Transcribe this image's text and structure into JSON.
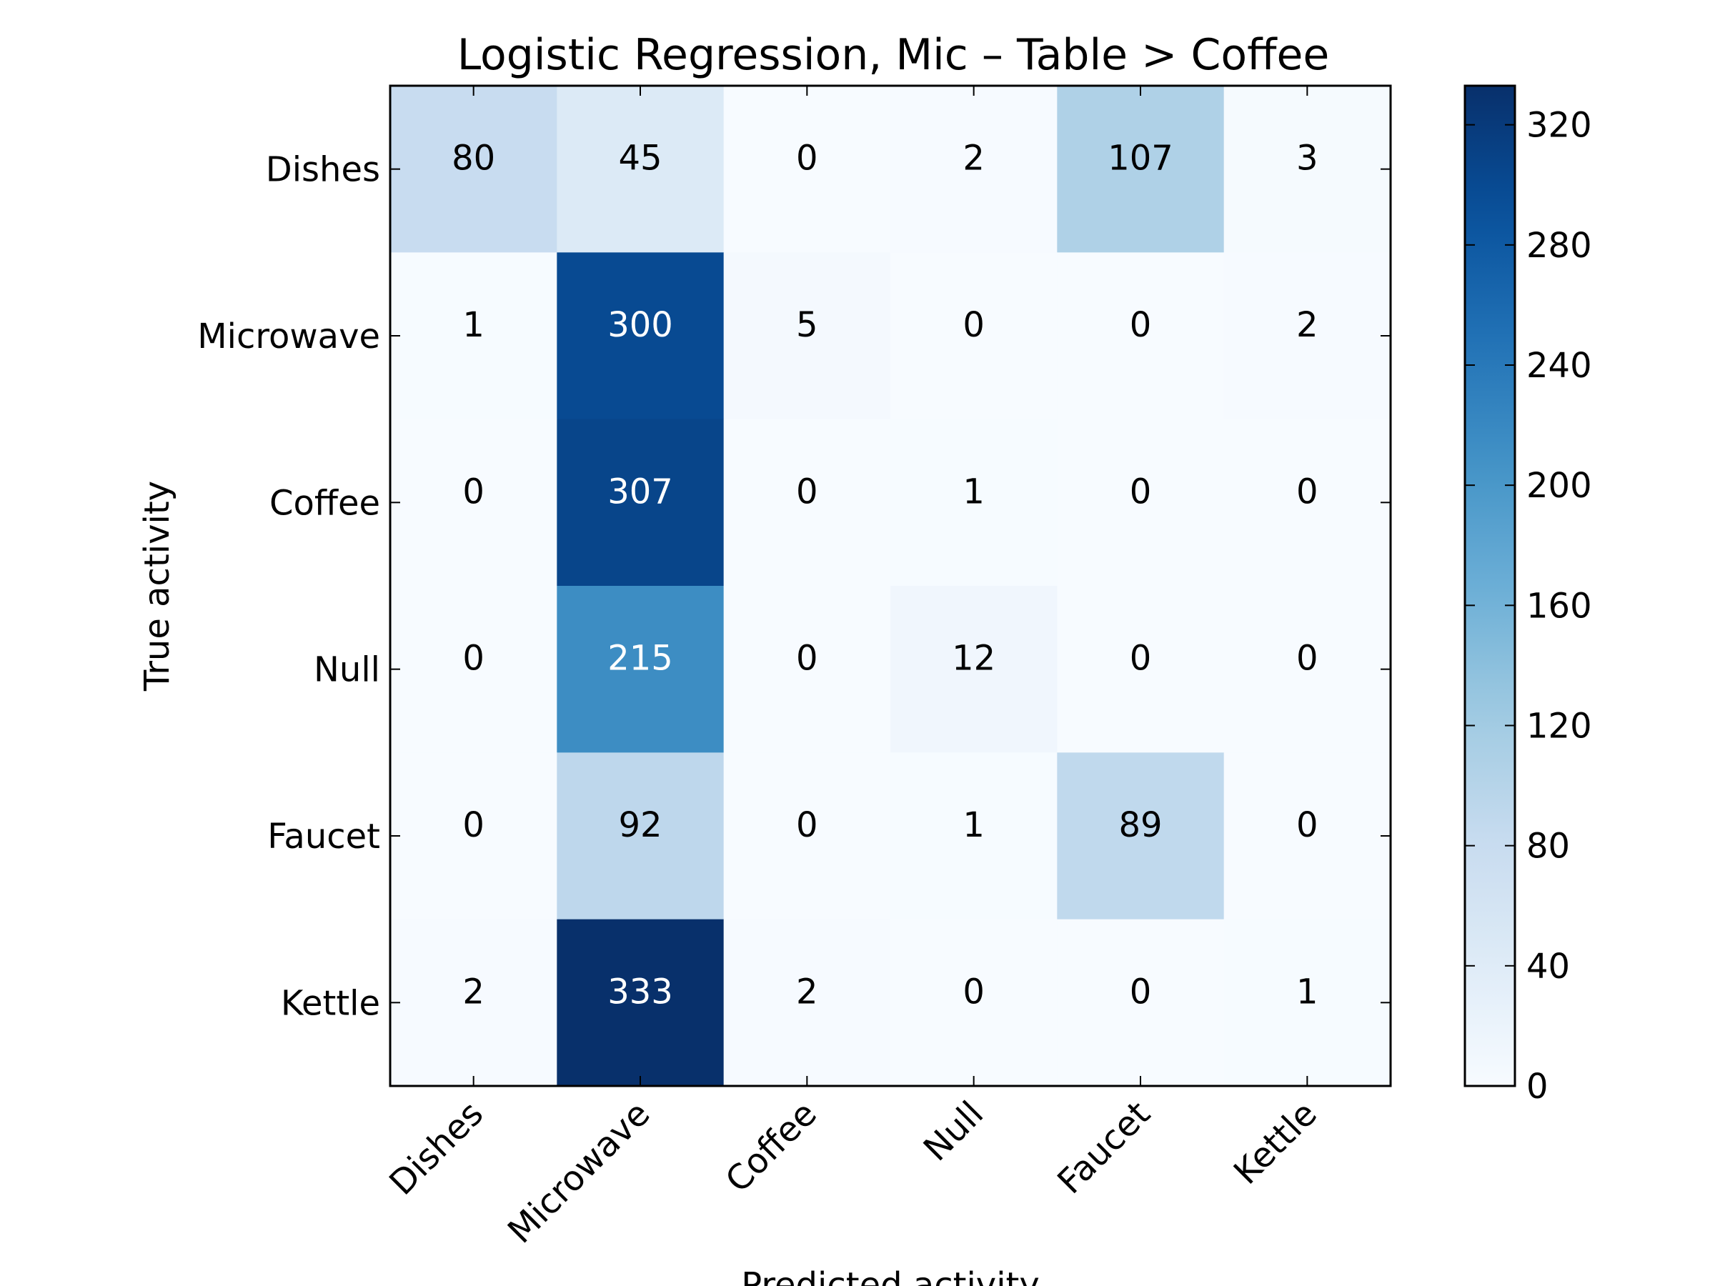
{
  "chart_data": {
    "type": "heatmap",
    "title": "Logistic Regression, Mic – Table > Coffee",
    "xlabel": "Predicted activity",
    "ylabel": "True activity",
    "x_categories": [
      "Dishes",
      "Microwave",
      "Coffee",
      "Null",
      "Faucet",
      "Kettle"
    ],
    "y_categories": [
      "Dishes",
      "Microwave",
      "Coffee",
      "Null",
      "Faucet",
      "Kettle"
    ],
    "values": [
      [
        80,
        45,
        0,
        2,
        107,
        3
      ],
      [
        1,
        300,
        5,
        0,
        0,
        2
      ],
      [
        0,
        307,
        0,
        1,
        0,
        0
      ],
      [
        0,
        215,
        0,
        12,
        0,
        0
      ],
      [
        0,
        92,
        0,
        1,
        89,
        0
      ],
      [
        2,
        333,
        2,
        0,
        0,
        1
      ]
    ],
    "colormap": "Blues",
    "colorbar": {
      "range": [
        0,
        333
      ],
      "ticks": [
        0,
        40,
        80,
        120,
        160,
        200,
        240,
        280,
        320
      ]
    },
    "grid": false
  }
}
